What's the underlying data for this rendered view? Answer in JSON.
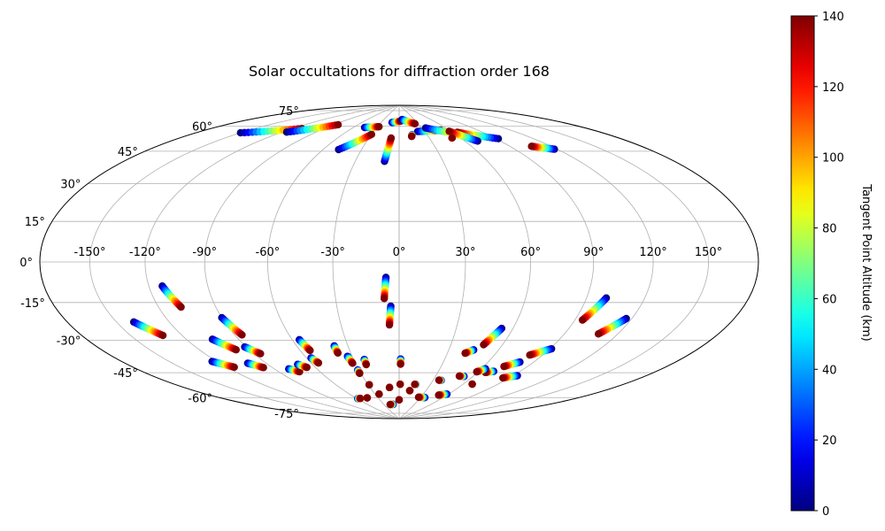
{
  "chart_data": {
    "type": "scatter",
    "projection": "aitoff-hammer",
    "title": "Solar occultations for diffraction order 168",
    "grid": true,
    "lon_range": [
      -180,
      180
    ],
    "lat_range": [
      -90,
      90
    ],
    "lon_ticks": [
      -150,
      -120,
      -90,
      -60,
      -30,
      0,
      30,
      60,
      90,
      120,
      150
    ],
    "lon_tick_labels": [
      "-150°",
      "-120°",
      "-90°",
      "-60°",
      "-30°",
      "0°",
      "30°",
      "60°",
      "90°",
      "120°",
      "150°"
    ],
    "lat_ticks": [
      75,
      60,
      45,
      30,
      15,
      0,
      -15,
      -30,
      -45,
      -60,
      -75
    ],
    "lat_tick_labels": [
      "75°",
      "60°",
      "45°",
      "30°",
      "15°",
      "0°",
      "-15°",
      "-30°",
      "-45°",
      "-60°",
      "-75°"
    ],
    "colorbar": {
      "label": "Tangent Point Altitude (km)",
      "colormap": "jet",
      "range": [
        0,
        140
      ],
      "ticks": [
        0,
        20,
        40,
        60,
        80,
        100,
        120,
        140
      ],
      "tick_labels": [
        "0",
        "20",
        "40",
        "60",
        "80",
        "100",
        "120",
        "140"
      ]
    },
    "occultation_tracks": [
      {
        "start": [
          -6,
          -8
        ],
        "end": [
          -7,
          -19
        ]
      },
      {
        "start": [
          -4,
          -23
        ],
        "end": [
          -5,
          -33
        ]
      },
      {
        "start": [
          -113,
          -11
        ],
        "end": [
          -108,
          -21
        ]
      },
      {
        "start": [
          -140,
          -26
        ],
        "end": [
          -131,
          -33
        ]
      },
      {
        "start": [
          -90,
          -27
        ],
        "end": [
          -86,
          -36
        ]
      },
      {
        "start": [
          -105,
          -37
        ],
        "end": [
          -98,
          -43
        ]
      },
      {
        "start": [
          -91,
          -42
        ],
        "end": [
          -86,
          -46
        ]
      },
      {
        "start": [
          -123,
          -47
        ],
        "end": [
          -115,
          -51
        ]
      },
      {
        "start": [
          -102,
          -50
        ],
        "end": [
          -96,
          -53
        ]
      },
      {
        "start": [
          -80,
          -55
        ],
        "end": [
          -75,
          -57
        ]
      },
      {
        "start": [
          -70,
          -53
        ],
        "end": [
          -66,
          -55
        ]
      },
      {
        "start": [
          -56,
          -40
        ],
        "end": [
          -54,
          -46
        ]
      },
      {
        "start": [
          -57,
          -50
        ],
        "end": [
          -55,
          -53
        ]
      },
      {
        "start": [
          -38,
          -44
        ],
        "end": [
          -38,
          -48
        ]
      },
      {
        "start": [
          -33,
          -50
        ],
        "end": [
          -32,
          -54
        ]
      },
      {
        "start": [
          -23,
          -52
        ],
        "end": [
          -23,
          -55
        ]
      },
      {
        "start": [
          1,
          -52
        ],
        "end": [
          1,
          -55
        ]
      },
      {
        "start": [
          -31,
          -58
        ],
        "end": [
          -31,
          -60
        ]
      },
      {
        "start": [
          100,
          -17
        ],
        "end": [
          94,
          -28
        ]
      },
      {
        "start": [
          117,
          -26
        ],
        "end": [
          109,
          -34
        ]
      },
      {
        "start": [
          54,
          -34
        ],
        "end": [
          49,
          -43
        ]
      },
      {
        "start": [
          45,
          -46
        ],
        "end": [
          41,
          -48
        ]
      },
      {
        "start": [
          91,
          -43
        ],
        "end": [
          82,
          -47
        ]
      },
      {
        "start": [
          81,
          -51
        ],
        "end": [
          74,
          -54
        ]
      },
      {
        "start": [
          93,
          -58
        ],
        "end": [
          85,
          -60
        ]
      },
      {
        "start": [
          71,
          -57
        ],
        "end": [
          66,
          -58
        ]
      },
      {
        "start": [
          63,
          -56
        ],
        "end": [
          59,
          -58
        ]
      },
      {
        "start": [
          53,
          -61
        ],
        "end": [
          49,
          -61
        ]
      },
      {
        "start": [
          37,
          -64
        ],
        "end": [
          35,
          -64
        ]
      },
      {
        "start": [
          16,
          -67
        ],
        "end": [
          15,
          -67
        ]
      },
      {
        "start": [
          36,
          -75
        ],
        "end": [
          27,
          -75
        ]
      },
      {
        "start": [
          58,
          -72
        ],
        "end": [
          50,
          -73
        ]
      },
      {
        "start": [
          -29,
          -67
        ],
        "end": [
          -29,
          -67
        ]
      },
      {
        "start": [
          -10,
          -69
        ],
        "end": [
          -10,
          -69
        ]
      },
      {
        "start": [
          1,
          -67
        ],
        "end": [
          1,
          -67
        ]
      },
      {
        "start": [
          12,
          -71
        ],
        "end": [
          12,
          -71
        ]
      },
      {
        "start": [
          -25,
          -73
        ],
        "end": [
          -25,
          -73
        ]
      },
      {
        "start": [
          -59,
          -75
        ],
        "end": [
          -55,
          -75
        ]
      },
      {
        "start": [
          -12,
          -80
        ],
        "end": [
          -18,
          -80
        ]
      },
      {
        "start": [
          0,
          -77
        ],
        "end": [
          0,
          -77
        ]
      },
      {
        "start": [
          -45,
          -75
        ],
        "end": [
          -45,
          -75
        ]
      },
      {
        "start": [
          68,
          -65
        ],
        "end": [
          68,
          -65
        ]
      },
      {
        "start": [
          -10,
          54
        ],
        "end": [
          -8,
          68
        ]
      },
      {
        "start": [
          -48,
          60
        ],
        "end": [
          -30,
          70
        ]
      },
      {
        "start": [
          -150,
          61
        ],
        "end": [
          -112,
          69
        ]
      },
      {
        "start": [
          -116,
          66
        ],
        "end": [
          -85,
          74
        ]
      },
      {
        "start": [
          -46,
          74
        ],
        "end": [
          -28,
          75
        ]
      },
      {
        "start": [
          -12,
          78
        ],
        "end": [
          3,
          79
        ]
      },
      {
        "start": [
          6,
          80
        ],
        "end": [
          25,
          77
        ]
      },
      {
        "start": [
          22,
          72
        ],
        "end": [
          50,
          72
        ]
      },
      {
        "start": [
          35,
          74
        ],
        "end": [
          70,
          68
        ]
      },
      {
        "start": [
          92,
          64
        ],
        "end": [
          65,
          70
        ]
      },
      {
        "start": [
          71,
          64
        ],
        "end": [
          58,
          71
        ]
      },
      {
        "start": [
          118,
          55
        ],
        "end": [
          106,
          58
        ]
      },
      {
        "start": [
          14,
          70
        ],
        "end": [
          13,
          69
        ]
      },
      {
        "start": [
          52,
          67
        ],
        "end": [
          52,
          67
        ]
      }
    ]
  }
}
